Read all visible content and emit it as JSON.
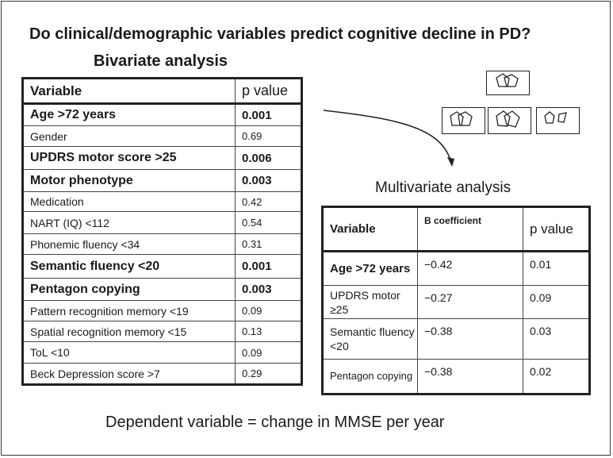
{
  "title": "Do clinical/demographic variables predict cognitive decline in PD?",
  "bivariate": {
    "heading": "Bivariate analysis",
    "col_variable": "Variable",
    "col_p": "p value",
    "rows": [
      {
        "variable": "Age >72 years",
        "p": "0.001",
        "significant": true
      },
      {
        "variable": "Gender",
        "p": "0.69",
        "significant": false
      },
      {
        "variable": "UPDRS motor score >25",
        "p": "0.006",
        "significant": true
      },
      {
        "variable": "Motor phenotype",
        "p": "0.003",
        "significant": true
      },
      {
        "variable": "Medication",
        "p": "0.42",
        "significant": false
      },
      {
        "variable": "NART (IQ) <112",
        "p": "0.54",
        "significant": false
      },
      {
        "variable": "Phonemic fluency <34",
        "p": "0.31",
        "significant": false
      },
      {
        "variable": "Semantic fluency <20",
        "p": "0.001",
        "significant": true
      },
      {
        "variable": "Pentagon copying",
        "p": "0.003",
        "significant": true
      },
      {
        "variable": "Pattern recognition memory <19",
        "p": "0.09",
        "significant": false
      },
      {
        "variable": "Spatial recognition memory <15",
        "p": "0.13",
        "significant": false
      },
      {
        "variable": "ToL <10",
        "p": "0.09",
        "significant": false
      },
      {
        "variable": "Beck Depression score >7",
        "p": "0.29",
        "significant": false
      }
    ]
  },
  "multivariate": {
    "heading": "Multivariate analysis",
    "col_variable": "Variable",
    "col_b": "B coefficient",
    "col_p": "p value",
    "rows": [
      {
        "variable": "Age >72 years",
        "b": "−0.42",
        "p": "0.01"
      },
      {
        "variable": "UPDRS motor ≥25",
        "b": "−0.27",
        "p": "0.09"
      },
      {
        "variable": "Semantic fluency <20",
        "b": "−0.38",
        "p": "0.03"
      },
      {
        "variable": "Pentagon copying",
        "b": "−0.38",
        "p": "0.02"
      }
    ]
  },
  "footer": "Dependent variable = change in MMSE per year",
  "icons": [
    "pentagon-drawing-icon"
  ]
}
